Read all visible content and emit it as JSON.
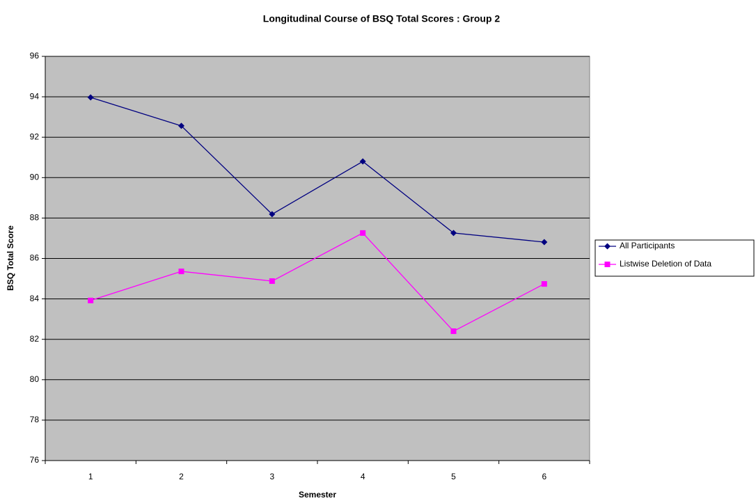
{
  "chart_data": {
    "type": "line",
    "title": "Longitudinal Course of BSQ Total Scores : Group 2",
    "x_label": "Semester",
    "y_label": "BSQ Total Score",
    "categories": [
      "1",
      "2",
      "3",
      "4",
      "5",
      "6"
    ],
    "series": [
      {
        "name": "All Participants",
        "color": "#000080",
        "marker": "diamond",
        "values": [
          93.97,
          92.56,
          88.19,
          90.8,
          87.26,
          86.81
        ]
      },
      {
        "name": "Listwise Deletion of Data",
        "color": "#ff00ff",
        "marker": "square",
        "values": [
          83.92,
          85.36,
          84.88,
          87.26,
          82.4,
          84.74
        ]
      }
    ],
    "ylim": [
      76,
      96
    ],
    "yticks": [
      76,
      78,
      80,
      82,
      84,
      86,
      88,
      90,
      92,
      94,
      96
    ],
    "grid": true,
    "legend": "right"
  }
}
